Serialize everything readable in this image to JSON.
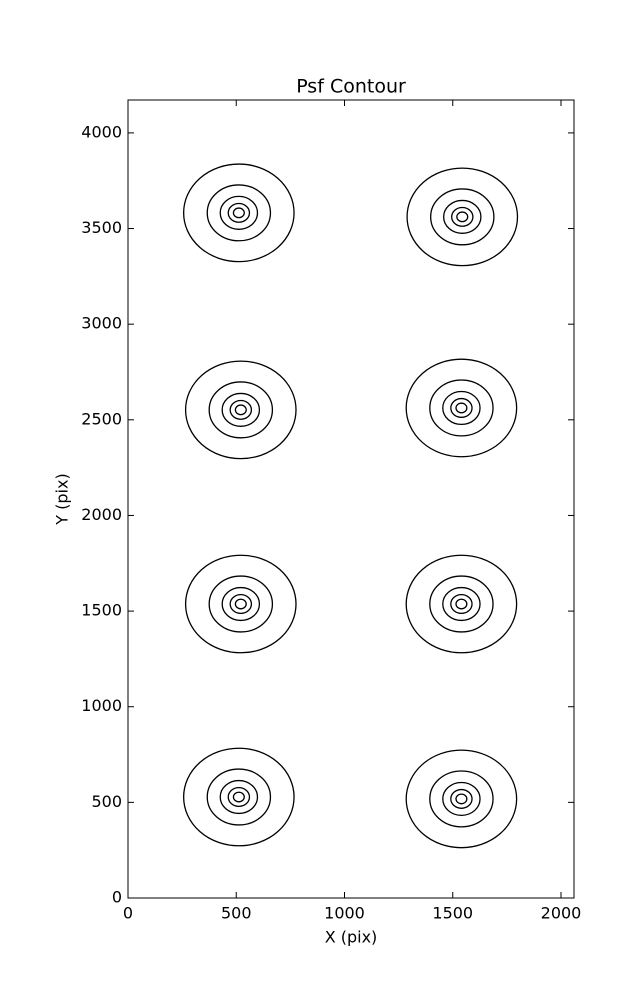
{
  "chart_data": {
    "type": "contour",
    "title": "Psf Contour",
    "x_label": "X (pix)",
    "y_label": "Y (pix)",
    "x": [
      512,
      1544,
      521,
      1540,
      521,
      1540,
      512,
      1540
    ],
    "y": [
      3582,
      3561,
      2552,
      2562,
      1537,
      1537,
      528,
      518
    ],
    "radii": [
      255,
      146,
      86,
      49,
      25
    ],
    "color": "#000000",
    "xlim": [
      0,
      2060
    ],
    "xticks": [
      0,
      500,
      1000,
      1500,
      2000
    ],
    "ylim": [
      0,
      4172
    ],
    "yticks": [
      0,
      500,
      1000,
      1500,
      2000,
      2500,
      3000,
      3500,
      4000
    ],
    "grid": false
  }
}
